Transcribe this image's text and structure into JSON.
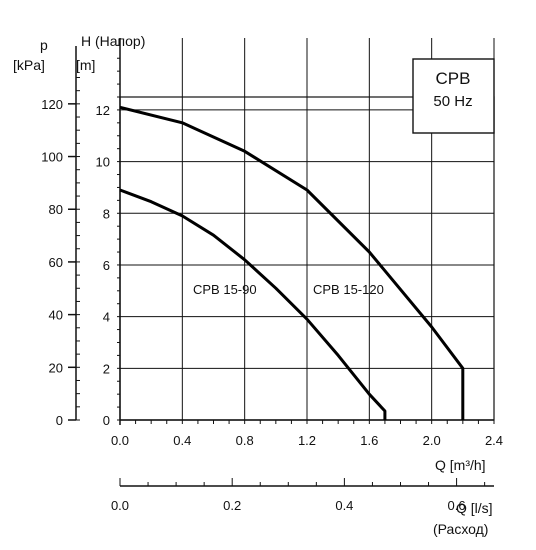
{
  "chart_data": {
    "type": "line",
    "title": "",
    "legend_box": {
      "line1": "CPB",
      "line2": "50 Hz"
    },
    "x_axis": {
      "label": "Q [m³/h]",
      "ticks": [
        "0.0",
        "0.4",
        "0.8",
        "1.2",
        "1.6",
        "2.0",
        "2.4"
      ],
      "range": [
        0,
        2.4
      ],
      "grid_values": [
        0,
        0.4,
        0.8,
        1.2,
        1.6,
        2.0,
        2.4
      ]
    },
    "x2_axis": {
      "label": "Q [l/s]",
      "label2": "(Расход)",
      "ticks": [
        "0.0",
        "0.2",
        "0.4",
        "0.6"
      ],
      "tick_values": [
        0,
        0.2,
        0.4,
        0.6
      ],
      "range": [
        0,
        0.6667
      ]
    },
    "y_axis": {
      "label": "H (Напор)",
      "unit": "[m]",
      "ticks": [
        "0",
        "2",
        "4",
        "6",
        "8",
        "10",
        "12"
      ],
      "range": [
        0,
        12.5
      ],
      "grid_values": [
        0,
        2,
        4,
        6,
        8,
        10,
        12
      ]
    },
    "y2_axis": {
      "label": "p",
      "unit": "[kPa]",
      "ticks": [
        "0",
        "20",
        "40",
        "60",
        "80",
        "100",
        "120"
      ],
      "tick_values": [
        0,
        20,
        40,
        60,
        80,
        100,
        120
      ],
      "range": [
        0,
        122.6
      ]
    },
    "grid": true,
    "series": [
      {
        "name": "CPB 15-90",
        "x": [
          0,
          0.2,
          0.4,
          0.6,
          0.8,
          1.0,
          1.2,
          1.4,
          1.6,
          1.7,
          1.7
        ],
        "y": [
          8.9,
          8.45,
          7.9,
          7.15,
          6.2,
          5.1,
          3.9,
          2.5,
          1.0,
          0.35,
          0
        ]
      },
      {
        "name": "CPB 15-120",
        "x": [
          0,
          0.4,
          0.8,
          1.2,
          1.6,
          2.0,
          2.2,
          2.2
        ],
        "y": [
          12.1,
          11.5,
          10.4,
          8.9,
          6.5,
          3.6,
          2.0,
          0
        ]
      }
    ]
  }
}
